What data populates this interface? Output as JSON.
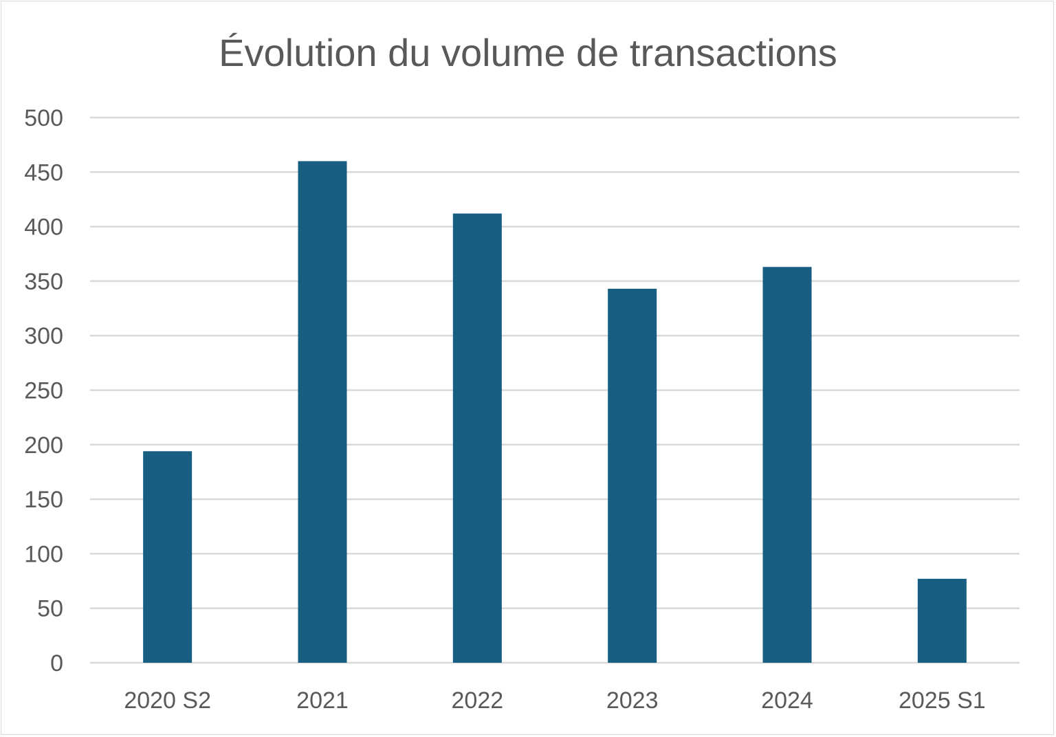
{
  "chart_data": {
    "type": "bar",
    "title": "Évolution du volume de transactions",
    "xlabel": "",
    "ylabel": "",
    "categories": [
      "2020 S2",
      "2021",
      "2022",
      "2023",
      "2024",
      "2025 S1"
    ],
    "values": [
      194,
      460,
      412,
      343,
      363,
      77
    ],
    "ylim": [
      0,
      500
    ],
    "yticks": [
      0,
      50,
      100,
      150,
      200,
      250,
      300,
      350,
      400,
      450,
      500
    ],
    "grid": true,
    "legend": "none",
    "bar_color": "#175E82",
    "grid_color": "#D9D9D9",
    "text_color": "#595959"
  }
}
